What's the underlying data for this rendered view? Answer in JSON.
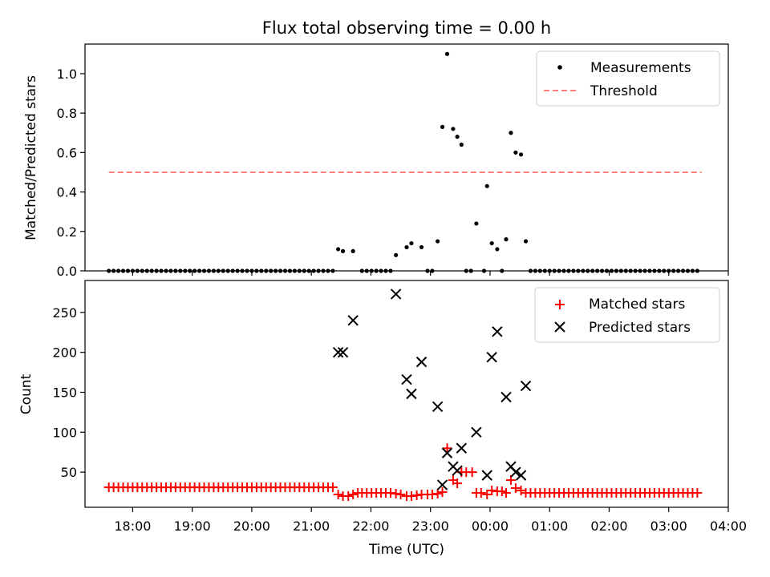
{
  "title": "Flux total observing time = 0.00 h",
  "colors": {
    "measurement": "#000000",
    "threshold": "#ff7f7f",
    "matched": "#ff0000",
    "predicted": "#000000"
  },
  "chart_data": [
    {
      "type": "scatter",
      "ylabel": "Matched/Predicted stars",
      "ylim": [
        0,
        1.15
      ],
      "yticks": [
        0.0,
        0.2,
        0.4,
        0.6,
        0.8,
        1.0
      ],
      "yticklabels": [
        "0.0",
        "0.2",
        "0.4",
        "0.6",
        "0.8",
        "1.0"
      ],
      "xlim_hours": [
        17.2,
        28.0
      ],
      "legend": [
        "Measurements",
        "Threshold"
      ],
      "legend_position": "upper right",
      "threshold": {
        "value": 0.5,
        "x_start": 17.6,
        "x_end": 27.55
      },
      "series": [
        {
          "name": "Measurements",
          "points": [
            [
              21.45,
              0.11
            ],
            [
              21.53,
              0.1
            ],
            [
              21.7,
              0.1
            ],
            [
              22.42,
              0.08
            ],
            [
              22.6,
              0.12
            ],
            [
              22.68,
              0.14
            ],
            [
              22.85,
              0.12
            ],
            [
              23.12,
              0.15
            ],
            [
              23.2,
              0.73
            ],
            [
              23.28,
              1.1
            ],
            [
              23.38,
              0.72
            ],
            [
              23.45,
              0.68
            ],
            [
              23.52,
              0.64
            ],
            [
              23.77,
              0.24
            ],
            [
              23.95,
              0.43
            ],
            [
              24.03,
              0.14
            ],
            [
              24.12,
              0.11
            ],
            [
              24.27,
              0.16
            ],
            [
              24.35,
              0.7
            ],
            [
              24.43,
              0.6
            ],
            [
              24.52,
              0.59
            ],
            [
              24.6,
              0.15
            ]
          ],
          "zero_runs": [
            {
              "from": 17.6,
              "to": 21.38,
              "step": 0.08
            },
            {
              "from": 21.85,
              "to": 22.35,
              "step": 0.08
            },
            {
              "from": 22.95,
              "to": 23.05,
              "step": 0.08
            },
            {
              "from": 23.6,
              "to": 23.7,
              "step": 0.08
            },
            {
              "from": 23.9,
              "to": 23.9,
              "step": 0.08
            },
            {
              "from": 24.2,
              "to": 24.2,
              "step": 0.08
            },
            {
              "from": 24.68,
              "to": 27.55,
              "step": 0.08
            }
          ]
        }
      ]
    },
    {
      "type": "scatter",
      "xlabel": "Time (UTC)",
      "ylabel": "Count",
      "ylim": [
        6,
        290
      ],
      "yticks": [
        50,
        100,
        150,
        200,
        250
      ],
      "yticklabels": [
        "50",
        "100",
        "150",
        "200",
        "250"
      ],
      "xlim_hours": [
        17.2,
        28.0
      ],
      "xticks_hours": [
        18,
        19,
        20,
        21,
        22,
        23,
        24,
        25,
        26,
        27,
        28
      ],
      "xticklabels": [
        "18:00",
        "19:00",
        "20:00",
        "21:00",
        "22:00",
        "23:00",
        "00:00",
        "01:00",
        "02:00",
        "03:00",
        "04:00"
      ],
      "legend": [
        "Matched stars",
        "Predicted stars"
      ],
      "legend_position": "upper right",
      "series": [
        {
          "name": "Matched stars",
          "marker": "plus",
          "runs": [
            {
              "from": 17.6,
              "to": 21.38,
              "step": 0.08,
              "value": 31
            },
            {
              "from": 21.85,
              "to": 22.35,
              "step": 0.08,
              "value": 24
            },
            {
              "from": 22.95,
              "to": 23.05,
              "step": 0.08,
              "value": 22
            },
            {
              "from": 24.68,
              "to": 27.55,
              "step": 0.08,
              "value": 24
            }
          ],
          "points": [
            [
              21.45,
              22
            ],
            [
              21.53,
              20
            ],
            [
              21.62,
              20
            ],
            [
              21.7,
              22
            ],
            [
              21.78,
              24
            ],
            [
              22.42,
              23
            ],
            [
              22.5,
              22
            ],
            [
              22.6,
              20
            ],
            [
              22.68,
              20
            ],
            [
              22.77,
              21
            ],
            [
              22.85,
              22
            ],
            [
              23.12,
              23
            ],
            [
              23.2,
              25
            ],
            [
              23.28,
              80
            ],
            [
              23.38,
              40
            ],
            [
              23.45,
              36
            ],
            [
              23.52,
              50
            ],
            [
              23.6,
              50
            ],
            [
              23.7,
              50
            ],
            [
              23.77,
              24
            ],
            [
              23.85,
              24
            ],
            [
              23.95,
              22
            ],
            [
              24.03,
              27
            ],
            [
              24.12,
              26
            ],
            [
              24.2,
              26
            ],
            [
              24.27,
              24
            ],
            [
              24.35,
              40
            ],
            [
              24.43,
              30
            ],
            [
              24.52,
              27
            ],
            [
              24.6,
              24
            ]
          ]
        },
        {
          "name": "Predicted stars",
          "marker": "x",
          "points": [
            [
              21.45,
              200
            ],
            [
              21.53,
              200
            ],
            [
              21.7,
              240
            ],
            [
              22.42,
              273
            ],
            [
              22.6,
              166
            ],
            [
              22.68,
              148
            ],
            [
              22.85,
              188
            ],
            [
              23.12,
              132
            ],
            [
              23.2,
              34
            ],
            [
              23.28,
              74
            ],
            [
              23.38,
              57
            ],
            [
              23.45,
              52
            ],
            [
              23.52,
              80
            ],
            [
              23.77,
              100
            ],
            [
              23.95,
              46
            ],
            [
              24.03,
              194
            ],
            [
              24.12,
              226
            ],
            [
              24.27,
              144
            ],
            [
              24.35,
              57
            ],
            [
              24.43,
              50
            ],
            [
              24.52,
              46
            ],
            [
              24.6,
              158
            ]
          ]
        }
      ]
    }
  ]
}
